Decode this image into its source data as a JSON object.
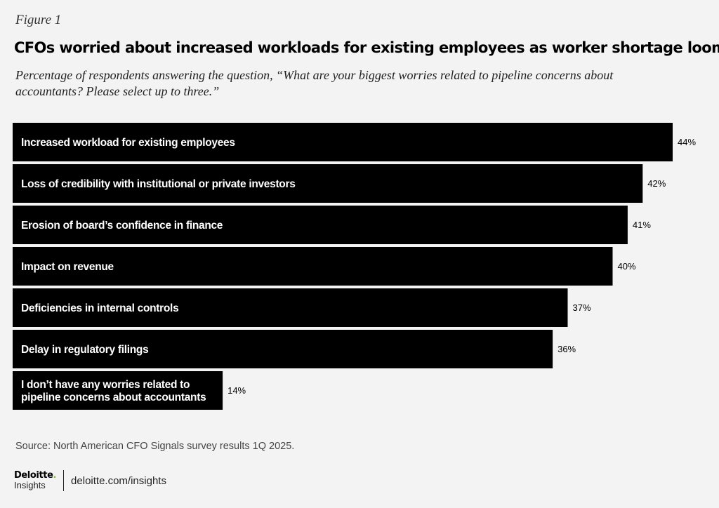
{
  "figure_label": "Figure 1",
  "footer": {
    "source": "Source: North American CFO Signals survey results 1Q 2025.",
    "logo_brand": "Deloitte",
    "logo_dot": ".",
    "logo_sub": "Insights",
    "url": "deloitte.com/insights"
  },
  "colors": {
    "bar": "#000000",
    "background": "#f3f3f4",
    "logo_dot": "#86bc25"
  },
  "chart_data": {
    "type": "bar",
    "orientation": "horizontal",
    "title": "CFOs worried about increased workloads for existing employees as worker shortage looms",
    "subtitle": "Percentage of respondents answering the question, “What are your biggest worries related to pipeline concerns about accountants? Please select up to three.”",
    "unit": "%",
    "categories": [
      [
        "Increased workload for existing employees"
      ],
      [
        "Loss of credibility with institutional or private investors"
      ],
      [
        "Erosion of board’s confidence in finance"
      ],
      [
        "Impact on revenue"
      ],
      [
        "Deficiencies in internal controls"
      ],
      [
        "Delay in regulatory filings"
      ],
      [
        "I don’t have any worries related to",
        "pipeline concerns about accountants"
      ]
    ],
    "values": [
      44,
      42,
      41,
      40,
      37,
      36,
      14
    ],
    "value_labels": [
      "44%",
      "42%",
      "41%",
      "40%",
      "37%",
      "36%",
      "14%"
    ],
    "xlim": [
      0,
      44
    ],
    "grid": false,
    "legend": "none"
  }
}
